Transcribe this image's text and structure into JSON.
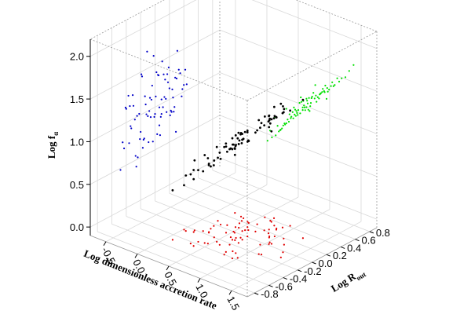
{
  "chart_data": {
    "type": "scatter3d",
    "x_label": "Log dimensionless accretion rate",
    "y_label": "Log R",
    "y_label_sub": "out",
    "z_label": "Log f",
    "z_label_sub": "α",
    "xlim": [
      -0.75,
      1.75
    ],
    "ylim": [
      -0.9,
      0.9
    ],
    "zlim": [
      -0.1,
      2.2
    ],
    "xticks": [
      -0.5,
      {
        "value": 0,
        "label": "0.0"
      },
      0.5,
      {
        "value": 1,
        "label": "1.0"
      },
      1.5
    ],
    "yticks": [
      -0.8,
      -0.6,
      -0.4,
      -0.2,
      {
        "value": 0,
        "label": "0.0"
      },
      0.2,
      0.4,
      0.6,
      0.8
    ],
    "zticks": [
      {
        "value": 0,
        "label": "0.0"
      },
      0.5,
      {
        "value": 1,
        "label": "1.0"
      },
      1.5,
      {
        "value": 2,
        "label": "2.0"
      }
    ],
    "grid": true,
    "color": "#000000",
    "projection_colors": {
      "yz": "#0000c8",
      "xz": "#00e000",
      "xy": "#e00000"
    },
    "x": [
      0.12,
      0.85,
      0.43,
      1.02,
      0.31,
      0.66,
      0.95,
      0.58,
      0.22,
      0.77,
      1.15,
      0.49,
      0.05,
      0.71,
      0.38,
      0.91,
      0.63,
      1.25,
      0.28,
      0.54,
      0.83,
      0.17,
      0.69,
      1.08,
      0.45,
      0.36,
      0.99,
      0.61,
      0.74,
      0.26,
      0.88,
      0.52,
      1.31,
      0.41,
      0.08,
      0.79,
      0.57,
      0.64,
      1.12,
      0.33,
      0.47,
      0.93,
      0.19,
      0.72,
      0.6,
      1.04,
      0.39,
      0.81,
      0.55,
      0.29,
      0.68,
      0.97,
      0.44,
      0.14,
      0.86,
      0.63,
      1.19,
      0.35,
      0.76,
      0.5,
      0.24,
      0.89,
      0.59,
      1.06,
      0.42,
      0.7,
      0.31,
      0.84,
      0.53,
      0.96,
      0.01,
      0.65,
      1.38,
      0.46,
      0.78,
      0.57,
      0.21,
      0.92,
      0.67,
      0.48
    ],
    "y": [
      -0.21,
      0.18,
      -0.34,
      0.05,
      0.27,
      -0.12,
      -0.41,
      0.09,
      -0.03,
      0.33,
      -0.18,
      0.22,
      -0.27,
      0.01,
      -0.45,
      0.14,
      -0.08,
      0.31,
      -0.15,
      0.4,
      -0.3,
      0.07,
      -0.22,
      0.19,
      -0.06,
      0.26,
      -0.37,
      0.11,
      -0.14,
      0.03,
      0.35,
      -0.25,
      -0.02,
      0.16,
      -0.48,
      0.24,
      -0.1,
      0.44,
      -0.19,
      0.06,
      -0.33,
      0.12,
      0.29,
      -0.07,
      -0.28,
      0.02,
      0.21,
      -0.4,
      0.15,
      -0.16,
      0.37,
      -0.04,
      0.08,
      -0.24,
      0.28,
      -0.13,
      0.1,
      -0.36,
      0.2,
      0.0,
      -0.09,
      -0.31,
      0.25,
      0.04,
      -0.2,
      0.13,
      -0.43,
      0.3,
      -0.01,
      0.17,
      -0.26,
      0.38,
      -0.11,
      0.23,
      -0.35,
      0.06,
      -0.17,
      0.42,
      -0.05,
      0.09
    ],
    "z": [
      0.72,
      1.21,
      0.93,
      1.35,
      0.88,
      0.97,
      1.18,
      1.05,
      0.61,
      1.29,
      1.44,
      0.86,
      0.55,
      1.12,
      0.79,
      1.26,
      0.99,
      1.52,
      0.7,
      1.08,
      1.15,
      0.64,
      1.02,
      1.38,
      0.91,
      0.83,
      1.3,
      0.95,
      1.19,
      0.67,
      1.24,
      1.01,
      1.61,
      0.87,
      0.48,
      1.1,
      0.94,
      1.07,
      1.47,
      0.76,
      0.9,
      1.33,
      0.58,
      1.14,
      0.98,
      1.4,
      0.81,
      1.16,
      1.03,
      0.69,
      0.96,
      1.27,
      0.85,
      0.52,
      1.22,
      1.09,
      1.49,
      0.74,
      1.13,
      0.92,
      0.63,
      1.28,
      1.0,
      1.36,
      0.8,
      1.06,
      0.71,
      1.2,
      0.89,
      1.31,
      0.42,
      1.04,
      1.7,
      0.84,
      1.17,
      0.97,
      0.6,
      1.25,
      1.11,
      0.88
    ]
  }
}
